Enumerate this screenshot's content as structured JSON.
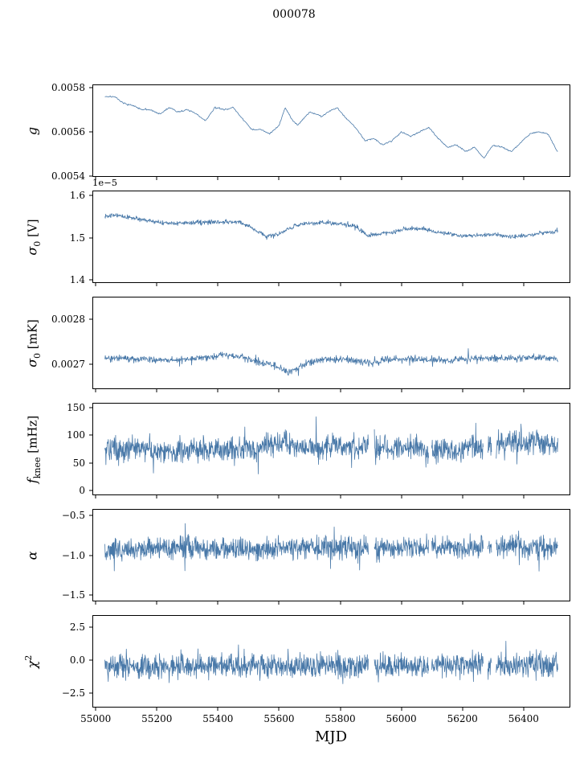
{
  "chart_data": {
    "type": "line",
    "title": "000078",
    "xlabel": "MJD",
    "line_color": "#4878a8",
    "background": "#ffffff",
    "x_range": [
      54989,
      56553
    ],
    "x_data_range": [
      55030,
      56512
    ],
    "xticks": [
      55000,
      55200,
      55400,
      55600,
      55800,
      56000,
      56200,
      56400
    ],
    "panels": [
      {
        "name": "g",
        "label": {
          "main": "g",
          "sub": "",
          "sup": "",
          "rest": ""
        },
        "offset": "",
        "ylim": [
          0.005395,
          0.005815
        ],
        "ytick_vals": [
          0.0054,
          0.0056,
          0.0058
        ],
        "ytick_labels": [
          "0.0054",
          "0.0056",
          "0.0058"
        ],
        "noise": 5e-06,
        "spike_p": 0.03,
        "spike_mul": 1.5,
        "density": 1.2,
        "seed": 7,
        "clip": [
          0.0054,
          0.0058
        ],
        "gaps": [],
        "trend_x": [
          55060,
          55090,
          55120,
          55150,
          55180,
          55210,
          55240,
          55270,
          55300,
          55330,
          55360,
          55390,
          55420,
          55450,
          55480,
          55510,
          55540,
          55570,
          55600,
          55620,
          55640,
          55660,
          55680,
          55700,
          55720,
          55740,
          55760,
          55790,
          55820,
          55850,
          55880,
          55910,
          55940,
          55970,
          56000,
          56030,
          56060,
          56090,
          56120,
          56150,
          56180,
          56210,
          56240,
          56270,
          56300,
          56330,
          56360,
          56390,
          56420,
          56450,
          56480,
          56510
        ],
        "trend_y": [
          0.00576,
          0.00573,
          0.00572,
          0.0057,
          0.0057,
          0.00568,
          0.00571,
          0.00569,
          0.0057,
          0.00568,
          0.00565,
          0.00571,
          0.0057,
          0.00571,
          0.00566,
          0.00561,
          0.00561,
          0.00559,
          0.00563,
          0.00571,
          0.00566,
          0.00563,
          0.00566,
          0.00569,
          0.00568,
          0.00567,
          0.00569,
          0.00571,
          0.00566,
          0.00562,
          0.00556,
          0.00557,
          0.00554,
          0.00556,
          0.0056,
          0.00558,
          0.0056,
          0.00562,
          0.00557,
          0.00553,
          0.00554,
          0.00551,
          0.00553,
          0.00548,
          0.00554,
          0.00553,
          0.00551,
          0.00555,
          0.00559,
          0.0056,
          0.00559,
          0.00551
        ]
      },
      {
        "name": "sigma0-V",
        "label": {
          "main": "σ",
          "sub": "0",
          "sup": "",
          "rest": " [V]"
        },
        "offset": "1e−5",
        "ylim": [
          1.392,
          1.612
        ],
        "ytick_vals": [
          1.4,
          1.5,
          1.6
        ],
        "ytick_labels": [
          "1.4",
          "1.5",
          "1.6"
        ],
        "noise": 0.0075,
        "spike_p": 0.04,
        "spike_mul": 1.7,
        "density": 2,
        "seed": 13,
        "clip": [
          1.42,
          1.595
        ],
        "gaps": [],
        "trend_x": [
          55060,
          55120,
          55180,
          55240,
          55300,
          55360,
          55420,
          55470,
          55520,
          55560,
          55600,
          55650,
          55700,
          55750,
          55800,
          55850,
          55890,
          55930,
          55970,
          56010,
          56060,
          56110,
          56160,
          56210,
          56260,
          56310,
          56360,
          56410,
          56460,
          56510
        ],
        "trend_y": [
          1.553,
          1.547,
          1.54,
          1.533,
          1.535,
          1.537,
          1.538,
          1.537,
          1.52,
          1.503,
          1.508,
          1.528,
          1.534,
          1.536,
          1.533,
          1.527,
          1.504,
          1.51,
          1.512,
          1.52,
          1.522,
          1.514,
          1.508,
          1.504,
          1.506,
          1.507,
          1.502,
          1.505,
          1.511,
          1.514
        ]
      },
      {
        "name": "sigma0-mK",
        "label": {
          "main": "σ",
          "sub": "0",
          "sup": "",
          "rest": " [mK]"
        },
        "offset": "",
        "ylim": [
          0.002645,
          0.00285
        ],
        "ytick_vals": [
          0.0027,
          0.0028
        ],
        "ytick_labels": [
          "0.0027",
          "0.0028"
        ],
        "noise": 1.1e-05,
        "spike_p": 0.05,
        "spike_mul": 2.2,
        "density": 2,
        "seed": 21,
        "clip": [
          0.002652,
          0.002805
        ],
        "gaps": [],
        "trend_x": [
          55060,
          55150,
          55250,
          55350,
          55420,
          55480,
          55540,
          55590,
          55630,
          55660,
          55700,
          55760,
          55850,
          55900,
          55950,
          56050,
          56150,
          56250,
          56350,
          56450,
          56510
        ],
        "trend_y": [
          0.002714,
          0.002712,
          0.002709,
          0.002713,
          0.002721,
          0.002716,
          0.002703,
          0.002697,
          0.002681,
          0.002692,
          0.002704,
          0.002712,
          0.002709,
          0.002701,
          0.002711,
          0.002712,
          0.002709,
          0.002714,
          0.002714,
          0.002717,
          0.002712
        ]
      },
      {
        "name": "fknee",
        "label": {
          "main": "f",
          "sub": "knee",
          "sup": "",
          "rest": " [mHz]"
        },
        "offset": "",
        "ylim": [
          -8,
          158
        ],
        "ytick_vals": [
          0,
          50,
          100,
          150
        ],
        "ytick_labels": [
          "0",
          "50",
          "100",
          "150"
        ],
        "noise": 33,
        "spike_p": 0.06,
        "spike_mul": 1.8,
        "density": 2.4,
        "seed": 34,
        "clip": [
          12,
          152
        ],
        "gaps": [
          [
            55893,
            55911
          ],
          [
            56090,
            56098
          ],
          [
            56268,
            56282
          ],
          [
            56296,
            56310
          ]
        ],
        "trend_x": [
          55060,
          55200,
          55350,
          55500,
          55600,
          55700,
          55800,
          55900,
          56000,
          56100,
          56200,
          56260,
          56350,
          56450,
          56510
        ],
        "trend_y": [
          76,
          72,
          74,
          76,
          86,
          78,
          80,
          76,
          78,
          74,
          70,
          84,
          86,
          86,
          82
        ]
      },
      {
        "name": "alpha",
        "label": {
          "main": "α",
          "sub": "",
          "sup": "",
          "rest": ""
        },
        "offset": "",
        "ylim": [
          -1.58,
          -0.42
        ],
        "ytick_vals": [
          -0.5,
          -1.0,
          -1.5
        ],
        "ytick_labels": [
          "−0.5",
          "−1.0",
          "−1.5"
        ],
        "noise": 0.2,
        "spike_p": 0.06,
        "spike_mul": 1.8,
        "density": 2.4,
        "seed": 55,
        "clip": [
          -1.52,
          -0.55
        ],
        "gaps": [
          [
            55893,
            55911
          ],
          [
            56090,
            56098
          ],
          [
            56268,
            56282
          ],
          [
            56296,
            56310
          ]
        ],
        "trend_x": [
          55060,
          55300,
          55500,
          55700,
          55900,
          56100,
          56300,
          56500
        ],
        "trend_y": [
          -0.93,
          -0.9,
          -0.94,
          -0.9,
          -0.92,
          -0.9,
          -0.9,
          -0.9
        ]
      },
      {
        "name": "chi2",
        "label": {
          "main": "χ",
          "sub": "",
          "sup": "2",
          "rest": ""
        },
        "offset": "",
        "ylim": [
          -3.6,
          3.4
        ],
        "ytick_vals": [
          2.5,
          0.0,
          -2.5
        ],
        "ytick_labels": [
          "2.5",
          "0.0",
          "−2.5"
        ],
        "noise": 1.3,
        "spike_p": 0.06,
        "spike_mul": 1.8,
        "density": 2.4,
        "seed": 89,
        "clip": [
          -2.95,
          2.35
        ],
        "gaps": [
          [
            55893,
            55911
          ],
          [
            56090,
            56098
          ],
          [
            56268,
            56282
          ],
          [
            56296,
            56310
          ]
        ],
        "trend_x": [
          55060,
          55300,
          55600,
          55900,
          56200,
          56510
        ],
        "trend_y": [
          -0.4,
          -0.45,
          -0.4,
          -0.45,
          -0.4,
          -0.4
        ]
      }
    ]
  }
}
